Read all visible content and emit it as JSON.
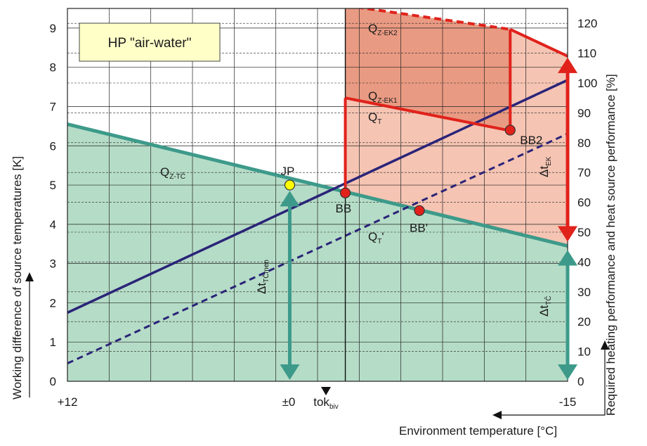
{
  "chart_data": {
    "type": "line",
    "legend_box": "HP \"air-water\"",
    "x_ticks": [
      "+12",
      "±0",
      "-15"
    ],
    "x_special": {
      "main": "tok",
      "sub": "biv"
    },
    "xlabel": "Environment temperature  [°C]",
    "ylabel_left": "Working difference of source temperatures [K]",
    "ylabel_right": "Required heating performance and heat source performance [%]",
    "ylim_left": [
      0,
      9.5
    ],
    "ylim_right": [
      0,
      125
    ],
    "y_ticks_left": [
      "0",
      "1",
      "2",
      "3",
      "4",
      "5",
      "6",
      "7",
      "8",
      "9"
    ],
    "y_ticks_right": [
      "0",
      "10",
      "20",
      "30",
      "40",
      "50",
      "60",
      "70",
      "80",
      "90",
      "100",
      "110",
      "120"
    ],
    "series": [
      {
        "name": "Q_Z-TČ",
        "axis": "left",
        "x": [
          12,
          -15
        ],
        "y": [
          6.55,
          3.45
        ]
      },
      {
        "name": "Q_T",
        "axis": "right",
        "x": [
          12,
          -15
        ],
        "y": [
          23,
          101
        ]
      },
      {
        "name": "Q_T'",
        "axis": "right",
        "x": [
          12,
          -15
        ],
        "y": [
          6,
          83
        ]
      },
      {
        "name": "Q_Z-EK1",
        "axis": "right",
        "x": [
          -3,
          -11.9
        ],
        "y": [
          95,
          84
        ]
      },
      {
        "name": "Q_Z-EK2",
        "axis": "right",
        "x": [
          -3,
          -11.9,
          -15
        ],
        "y": [
          126,
          118,
          109
        ]
      }
    ],
    "points": [
      {
        "name": "JP",
        "x": 0,
        "y_left": 5.0
      },
      {
        "name": "BB",
        "x": -3,
        "y_left": 4.8
      },
      {
        "name": "BB'",
        "x": -7,
        "y_left": 4.35
      },
      {
        "name": "BB2",
        "x": -11.9,
        "y_left": 6.4
      }
    ],
    "arrows": [
      {
        "name": "Δt_TČ,men",
        "main": "Δt",
        "sub": "TČmen"
      },
      {
        "name": "Δt_TČ",
        "main": "Δt",
        "sub": "TČ"
      },
      {
        "name": "Δt_EK",
        "main": "Δt",
        "sub": "EK"
      }
    ],
    "area_labels": {
      "qztc": {
        "main": "Q",
        "sub": "Z-TČ"
      },
      "qt": {
        "main": "Q",
        "sub": "T"
      },
      "qt2": {
        "main": "Q",
        "sub": "T",
        "suffix": "'"
      },
      "qzek1": {
        "main": "Q",
        "sub": "Z-EK1"
      },
      "qzek2": {
        "main": "Q",
        "sub": "Z-EK2"
      }
    },
    "colors": {
      "green_area": "#b5dcc7",
      "green_line": "#3d9a8a",
      "navy_line": "#2a2478",
      "red": "#e0221b",
      "salmon_light": "#f5c4b3",
      "salmon_dark": "#e99a82",
      "legend_bg": "#ffffc8",
      "point_yellow": "#ffff00",
      "point_red": "#e0221b"
    },
    "grid": true
  }
}
